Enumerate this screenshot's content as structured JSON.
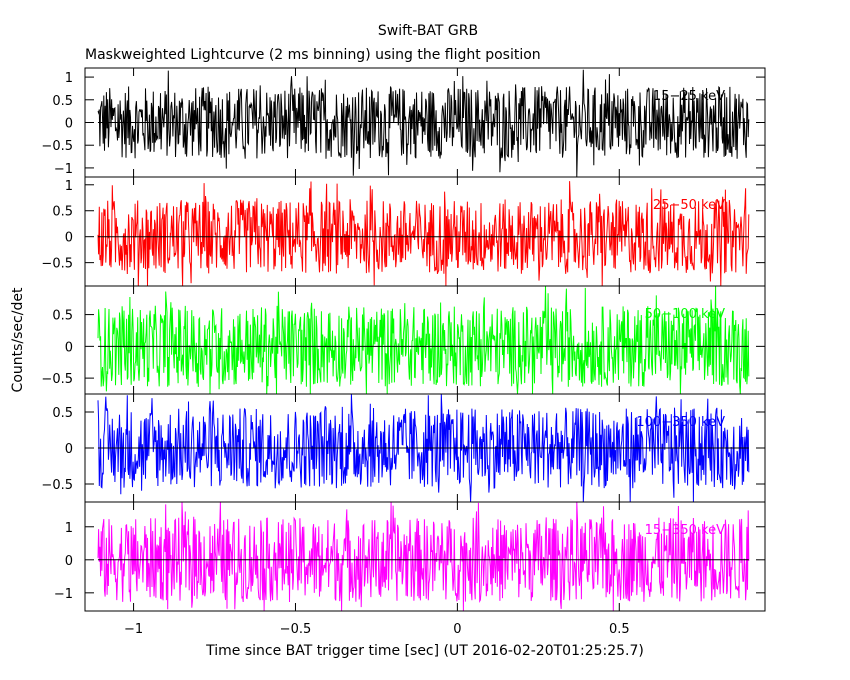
{
  "chart_data": {
    "type": "line",
    "title": "Swift-BAT GRB",
    "subtitle": "Maskweighted Lightcurve (2 ms binning) using the flight position",
    "xlabel": "Time since BAT trigger time [sec] (UT 2016-02-20T01:25:25.7)",
    "ylabel": "Counts/sec/det",
    "xlim": [
      -1.15,
      0.95
    ],
    "x_ticks": [
      {
        "value": -1,
        "label": "−1"
      },
      {
        "value": -0.5,
        "label": "−0.5"
      },
      {
        "value": 0,
        "label": "0"
      },
      {
        "value": 0.5,
        "label": "0.5"
      }
    ],
    "series": [
      {
        "name": "15−25 keV",
        "color": "#000000",
        "ylim": [
          -1.2,
          1.2
        ],
        "y_ticks": [
          {
            "value": 1,
            "label": "1"
          },
          {
            "value": 0.5,
            "label": "0.5"
          },
          {
            "value": 0,
            "label": "0"
          },
          {
            "value": -0.5,
            "label": "−0.5"
          },
          {
            "value": -1,
            "label": "−1"
          }
        ],
        "noise_amplitude": 0.5,
        "x_range": [
          -1.11,
          0.9
        ]
      },
      {
        "name": "25−50 keV",
        "color": "#ff0000",
        "ylim": [
          -0.95,
          1.15
        ],
        "y_ticks": [
          {
            "value": 1,
            "label": "1"
          },
          {
            "value": 0.5,
            "label": "0.5"
          },
          {
            "value": 0,
            "label": "0"
          },
          {
            "value": -0.5,
            "label": "−0.5"
          }
        ],
        "noise_amplitude": 0.45,
        "x_range": [
          -1.11,
          0.9
        ]
      },
      {
        "name": "50−100 keV",
        "color": "#00ff00",
        "ylim": [
          -0.75,
          0.95
        ],
        "y_ticks": [
          {
            "value": 0.5,
            "label": "0.5"
          },
          {
            "value": 0,
            "label": "0"
          },
          {
            "value": -0.5,
            "label": "−0.5"
          }
        ],
        "noise_amplitude": 0.4,
        "x_range": [
          -1.11,
          0.9
        ]
      },
      {
        "name": "100−350 keV",
        "color": "#0000ff",
        "ylim": [
          -0.75,
          0.75
        ],
        "y_ticks": [
          {
            "value": 0.5,
            "label": "0.5"
          },
          {
            "value": 0,
            "label": "0"
          },
          {
            "value": -0.5,
            "label": "−0.5"
          }
        ],
        "noise_amplitude": 0.35,
        "x_range": [
          -1.11,
          0.9
        ]
      },
      {
        "name": "15−350 keV",
        "color": "#ff00ff",
        "ylim": [
          -1.55,
          1.75
        ],
        "y_ticks": [
          {
            "value": 1,
            "label": "1"
          },
          {
            "value": 0,
            "label": "0"
          },
          {
            "value": -1,
            "label": "−1"
          }
        ],
        "noise_amplitude": 0.8,
        "x_range": [
          -1.11,
          0.9
        ]
      }
    ]
  }
}
